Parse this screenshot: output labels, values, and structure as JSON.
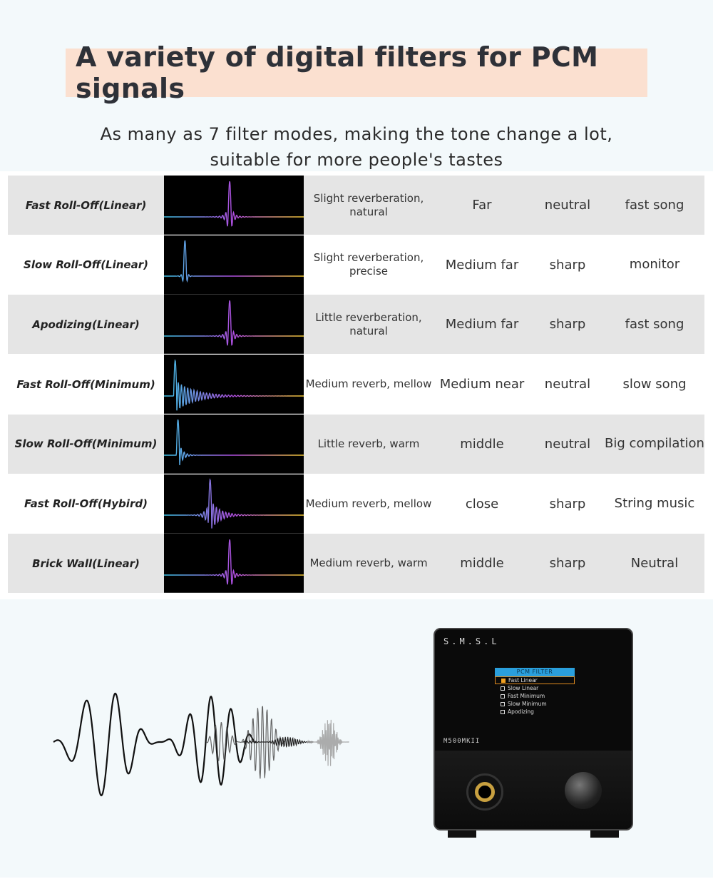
{
  "header": {
    "title": "A variety of digital filters for PCM signals",
    "subtitle_line1": "As many as 7 filter modes, making the tone change a lot,",
    "subtitle_line2": "suitable for more people's tastes"
  },
  "filters": [
    {
      "name": "Fast Roll-Off(Linear)",
      "desc": "Slight reverberation, natural",
      "distance": "Far",
      "tone": "neutral",
      "genre": "fast song"
    },
    {
      "name": "Slow Roll-Off(Linear)",
      "desc": "Slight reverberation, precise",
      "distance": "Medium far",
      "tone": "sharp",
      "genre": "monitor"
    },
    {
      "name": "Apodizing(Linear)",
      "desc": "Little reverberation, natural",
      "distance": "Medium far",
      "tone": "sharp",
      "genre": "fast song"
    },
    {
      "name": "Fast Roll-Off(Minimum)",
      "desc": "Medium reverb, mellow",
      "distance": "Medium near",
      "tone": "neutral",
      "genre": "slow song"
    },
    {
      "name": "Slow Roll-Off(Minimum)",
      "desc": "Little reverb, warm",
      "distance": "middle",
      "tone": "neutral",
      "genre": "Big compilation"
    },
    {
      "name": "Fast Roll-Off(Hybird)",
      "desc": "Medium reverb, mellow",
      "distance": "close",
      "tone": "sharp",
      "genre": "String music"
    },
    {
      "name": "Brick Wall(Linear)",
      "desc": "Medium reverb, warm",
      "distance": "middle",
      "tone": "sharp",
      "genre": "Neutral"
    }
  ],
  "device": {
    "brand": "S.M.S.L",
    "model": "M500MKII",
    "menu_title": "PCM FILTER",
    "menu_items": [
      "Fast Linear",
      "Slow Linear",
      "Fast Minimum",
      "Slow Minimum",
      "Apodizing"
    ],
    "selected_index": 0
  },
  "colors": {
    "title_bg": "#fbe0d0",
    "row_gray": "#e5e5e5",
    "wave_start": "#3ec6e8",
    "wave_mid": "#b04de0",
    "wave_end": "#f0c830",
    "menu_header": "#2a9fdc",
    "menu_select": "#e08a1e"
  }
}
